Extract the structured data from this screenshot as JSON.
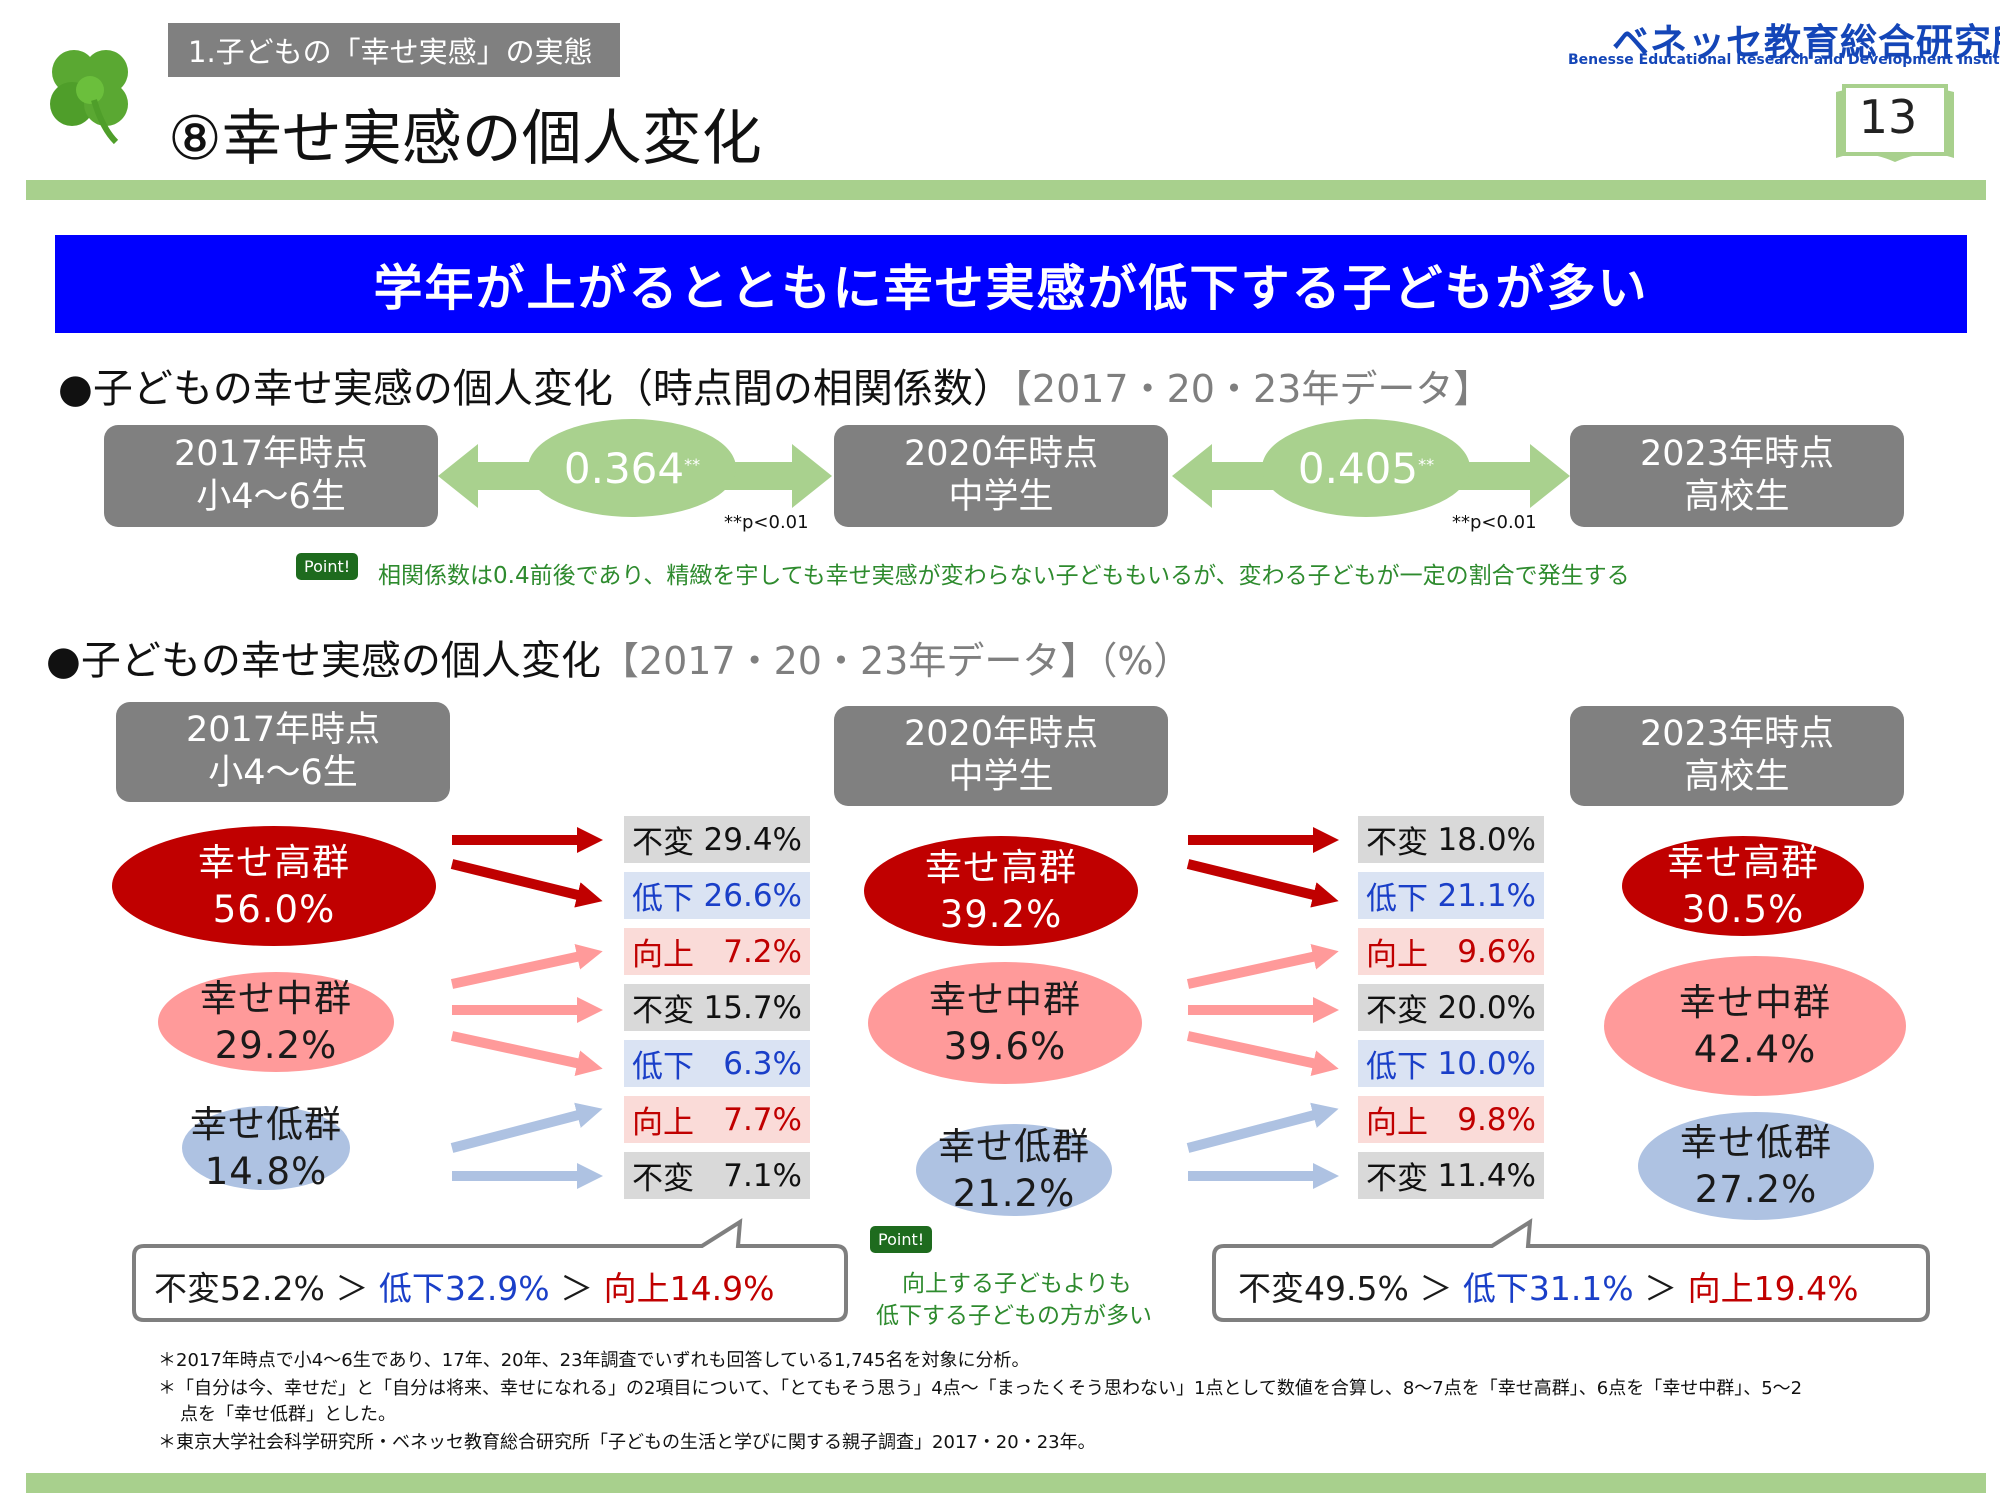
{
  "header": {
    "section_label": "1.子どもの「幸せ実感」の実態",
    "title": "⑧幸せ実感の個人変化",
    "brand_ja": "ベネッセ教育総合研究所",
    "brand_en": "Benesse Educational Research and Development Institute",
    "page_number": "13"
  },
  "headline": "学年が上がるとともに幸せ実感が低下する子どもが多い",
  "section1": {
    "heading": "●子どもの幸せ実感の個人変化（時点間の相関係数）",
    "heading_note": "【2017・20・23年データ】",
    "timepoints": [
      {
        "year": "2017年時点",
        "grade": "小4～6生"
      },
      {
        "year": "2020年時点",
        "grade": "中学生"
      },
      {
        "year": "2023年時点",
        "grade": "高校生"
      }
    ],
    "correlations": [
      {
        "value": "0.364",
        "mark": "**",
        "pnote": "**p<0.01"
      },
      {
        "value": "0.405",
        "mark": "**",
        "pnote": "**p<0.01"
      }
    ],
    "point_badge": "Point!",
    "point_text": "相関係数は0.4前後であり、精緻を宇しても幸せ実感が変わらない子どももいるが、変わる子どもが一定の割合で発生する"
  },
  "section2": {
    "heading": "●子どもの幸せ実感の個人変化",
    "heading_note": "【2017・20・23年データ】（%）",
    "timepoints": [
      {
        "year": "2017年時点",
        "grade": "小4～6生"
      },
      {
        "year": "2020年時点",
        "grade": "中学生"
      },
      {
        "year": "2023年時点",
        "grade": "高校生"
      }
    ],
    "groups": [
      [
        {
          "label": "幸せ高群",
          "value": "56.0%"
        },
        {
          "label": "幸せ中群",
          "value": "29.2%"
        },
        {
          "label": "幸せ低群",
          "value": "14.8%"
        }
      ],
      [
        {
          "label": "幸せ高群",
          "value": "39.2%"
        },
        {
          "label": "幸せ中群",
          "value": "39.6%"
        },
        {
          "label": "幸せ低群",
          "value": "21.2%"
        }
      ],
      [
        {
          "label": "幸せ高群",
          "value": "30.5%"
        },
        {
          "label": "幸せ中群",
          "value": "42.4%"
        },
        {
          "label": "幸せ低群",
          "value": "27.2%"
        }
      ]
    ],
    "transitions": [
      [
        {
          "type": "same",
          "label": "不変",
          "value": "29.4%"
        },
        {
          "type": "down",
          "label": "低下",
          "value": "26.6%"
        },
        {
          "type": "up",
          "label": "向上",
          "value": "7.2%"
        },
        {
          "type": "same",
          "label": "不変",
          "value": "15.7%"
        },
        {
          "type": "down",
          "label": "低下",
          "value": "6.3%"
        },
        {
          "type": "up",
          "label": "向上",
          "value": "7.7%"
        },
        {
          "type": "same",
          "label": "不変",
          "value": "7.1%"
        }
      ],
      [
        {
          "type": "same",
          "label": "不変",
          "value": "18.0%"
        },
        {
          "type": "down",
          "label": "低下",
          "value": "21.1%"
        },
        {
          "type": "up",
          "label": "向上",
          "value": "9.6%"
        },
        {
          "type": "same",
          "label": "不変",
          "value": "20.0%"
        },
        {
          "type": "down",
          "label": "低下",
          "value": "10.0%"
        },
        {
          "type": "up",
          "label": "向上",
          "value": "9.8%"
        },
        {
          "type": "same",
          "label": "不変",
          "value": "11.4%"
        }
      ]
    ],
    "summaries": [
      {
        "same": "不変52.2%",
        "sep1": " ＞ ",
        "down": "低下32.9%",
        "sep2": " ＞ ",
        "up": "向上14.9%"
      },
      {
        "same": "不変49.5%",
        "sep1": " ＞ ",
        "down": "低下31.1%",
        "sep2": " ＞ ",
        "up": "向上19.4%"
      }
    ],
    "point_badge": "Point!",
    "point_line1": "向上する子どもよりも",
    "point_line2": "低下する子どもの方が多い"
  },
  "footnotes": [
    "＊2017年時点で小4～6生であり、17年、20年、23年調査でいずれも回答している1,745名を対象に分析。",
    "＊「自分は今、幸せだ」と「自分は将来、幸せになれる」の2項目について、「とてもそう思う」4点～「まったくそう思わない」1点として数値を合算し、8～7点を「幸せ高群」、6点を「幸せ中群」、5～2",
    "点を「幸せ低群」とした。",
    "＊東京大学社会科学研究所・ベネッセ教育総合研究所「子どもの生活と学びに関する親子調査」2017・20・23年。"
  ],
  "colors": {
    "headline_bg": "#0000ff",
    "rule_green": "#a8d08d",
    "high": "#c00000",
    "mid": "#ff9a9a",
    "low": "#aec2e2",
    "arrow_green": "#a9d18e",
    "box_gray": "#808080"
  }
}
